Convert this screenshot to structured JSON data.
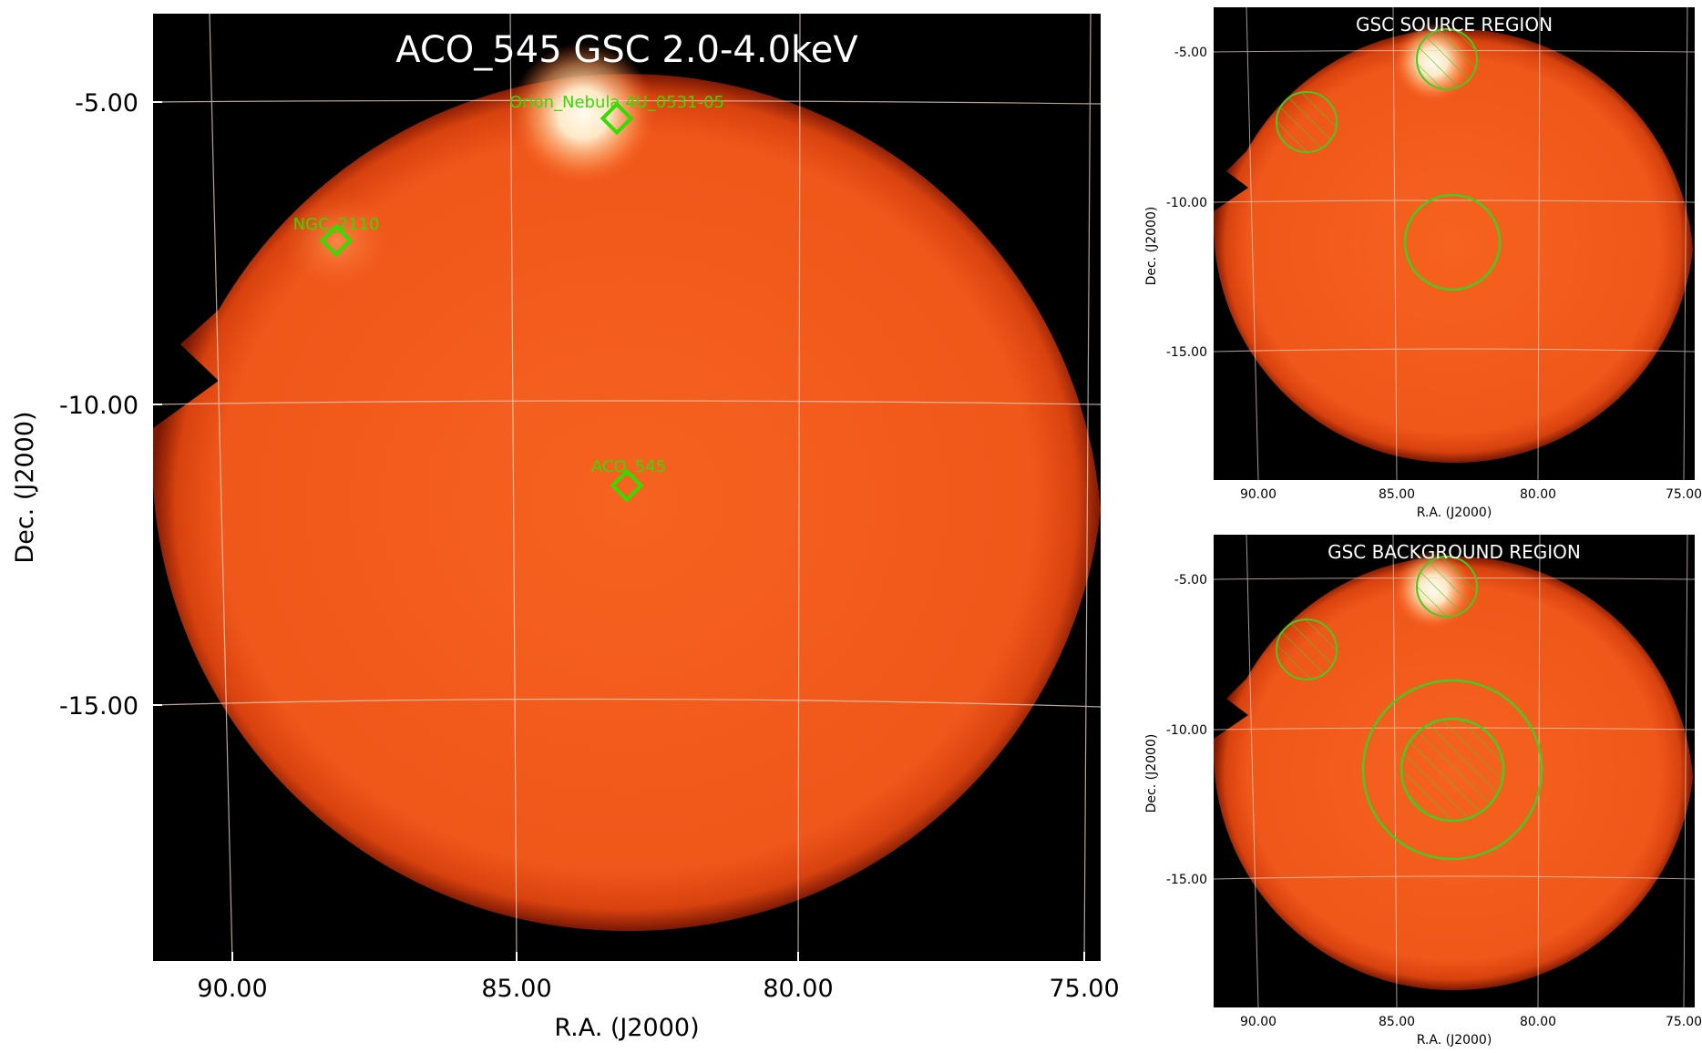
{
  "panels": {
    "main": {
      "title": "ACO_545 GSC 2.0-4.0keV",
      "xlabel": "R.A. (J2000)",
      "ylabel": "Dec. (J2000)",
      "xticks": [
        "90.00",
        "85.00",
        "80.00",
        "75.00"
      ],
      "yticks": [
        "-5.00",
        "-10.00",
        "-15.00"
      ],
      "sources": [
        {
          "label": "Orion_Nebula 4U_0531-05"
        },
        {
          "label": "NGC_2110"
        },
        {
          "label": "ACO_545"
        }
      ]
    },
    "source_region": {
      "title": "GSC SOURCE REGION",
      "xlabel": "R.A. (J2000)",
      "ylabel": "Dec. (J2000)",
      "xticks": [
        "90.00",
        "85.00",
        "80.00",
        "75.00"
      ],
      "yticks": [
        "-5.00",
        "-10.00",
        "-15.00"
      ]
    },
    "background_region": {
      "title": "GSC BACKGROUND REGION",
      "xlabel": "R.A. (J2000)",
      "ylabel": "Dec. (J2000)",
      "xticks": [
        "90.00",
        "85.00",
        "80.00",
        "75.00"
      ],
      "yticks": [
        "-5.00",
        "-10.00",
        "-15.00"
      ]
    }
  },
  "colors": {
    "field": "#f25a1c",
    "field_edge": "#b82c08",
    "bright": "#fff6e0",
    "marker": "#33dd00",
    "region": "#44cc22",
    "grid": "#f0d8c8",
    "background": "#000000"
  }
}
